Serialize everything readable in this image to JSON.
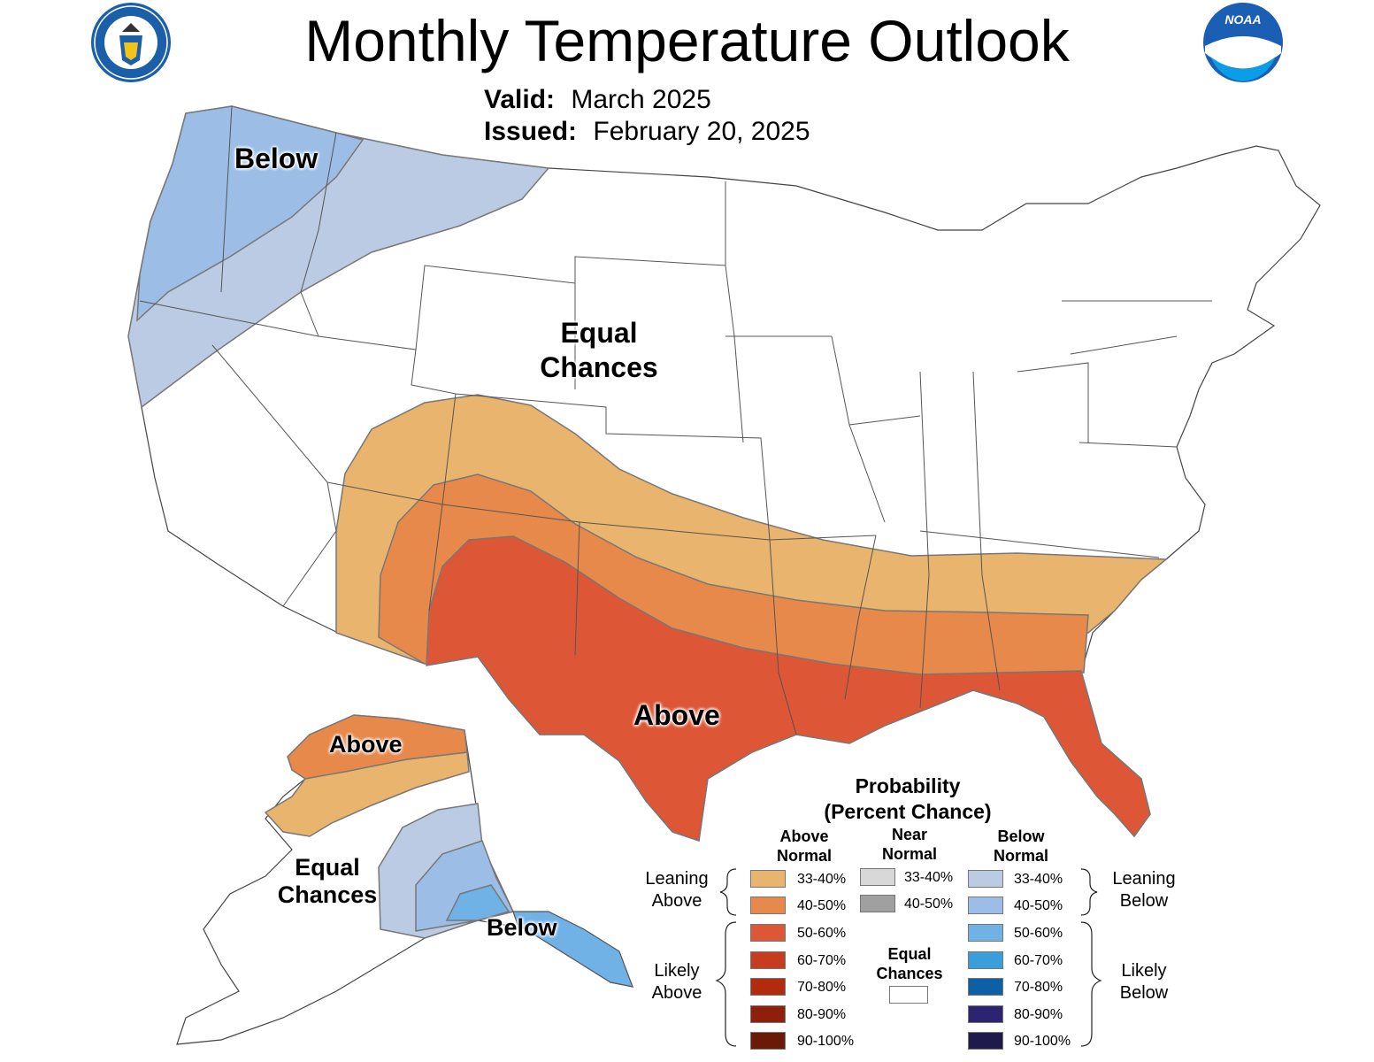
{
  "header": {
    "title": "Monthly Temperature Outlook",
    "valid_label": "Valid:",
    "valid_value": "March 2025",
    "issued_label": "Issued:",
    "issued_value": "February 20, 2025"
  },
  "logos": {
    "left": {
      "icon": "doc-seal-icon",
      "text": "DEPARTMENT OF COMMERCE · UNITED STATES OF AMERICA"
    },
    "right": {
      "icon": "noaa-logo-icon",
      "text": "NOAA"
    }
  },
  "map_labels": {
    "conus_below": "Below",
    "conus_equal_1": "Equal",
    "conus_equal_2": "Chances",
    "conus_above": "Above",
    "ak_above": "Above",
    "ak_equal_1": "Equal",
    "ak_equal_2": "Chances",
    "ak_below": "Below"
  },
  "colors": {
    "above_33_40": "#e8b46e",
    "above_40_50": "#e6894b",
    "above_50_60": "#dd5636",
    "above_60_70": "#c63c1e",
    "above_70_80": "#b42a0c",
    "above_80_90": "#8e1f08",
    "above_90_100": "#6a1a06",
    "near_33_40": "#d8d8d8",
    "near_40_50": "#a0a0a0",
    "below_33_40": "#bccbe4",
    "below_40_50": "#9bbde6",
    "below_50_60": "#70b1e6",
    "below_60_70": "#3a9edb",
    "below_70_80": "#0d5fa6",
    "below_80_90": "#2c2470",
    "below_90_100": "#1e1a4c",
    "equal_chances": "#ffffff"
  },
  "legend": {
    "title_1": "Probability",
    "title_2": "(Percent Chance)",
    "col_above_1": "Above",
    "col_above_2": "Normal",
    "col_near_1": "Near",
    "col_near_2": "Normal",
    "col_below_1": "Below",
    "col_below_2": "Normal",
    "leaning_above_1": "Leaning",
    "leaning_above_2": "Above",
    "likely_above_1": "Likely",
    "likely_above_2": "Above",
    "leaning_below_1": "Leaning",
    "leaning_below_2": "Below",
    "likely_below_1": "Likely",
    "likely_below_2": "Below",
    "equal_1": "Equal",
    "equal_2": "Chances",
    "above": [
      "33-40%",
      "40-50%",
      "50-60%",
      "60-70%",
      "70-80%",
      "80-90%",
      "90-100%"
    ],
    "near": [
      "33-40%",
      "40-50%"
    ],
    "below": [
      "33-40%",
      "40-50%",
      "50-60%",
      "60-70%",
      "70-80%",
      "80-90%",
      "90-100%"
    ]
  }
}
